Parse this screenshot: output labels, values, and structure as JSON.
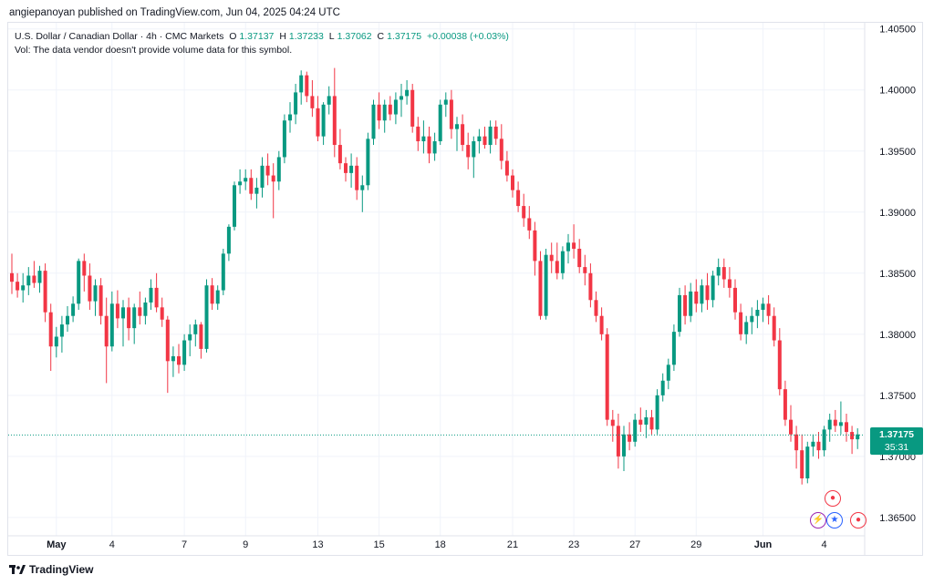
{
  "header": {
    "published_line": "angiepanoyan published on TradingView.com, Jun 04, 2025 04:24 UTC"
  },
  "legend": {
    "symbol": "U.S. Dollar / Canadian Dollar · 4h · CMC Markets",
    "o_key": "O",
    "o_val": "1.37137",
    "h_key": "H",
    "h_val": "1.37233",
    "l_key": "L",
    "l_val": "1.37062",
    "c_key": "C",
    "c_val": "1.37175",
    "change": "+0.00038 (+0.03%)",
    "vol_note": "Vol: The data vendor doesn't provide volume data for this symbol."
  },
  "price_label": {
    "price": "1.37175",
    "countdown": "35:31"
  },
  "footer": {
    "brand": "TradingView"
  },
  "colors": {
    "up": "#089981",
    "down": "#f23645",
    "grid": "#f0f3fa",
    "text": "#131722"
  },
  "chart_data": {
    "type": "candlestick",
    "symbol": "USDCAD",
    "timeframe": "4h",
    "y_range": [
      1.3635,
      1.4055
    ],
    "y_ticks": [
      "1.40500",
      "1.40000",
      "1.39500",
      "1.39000",
      "1.38500",
      "1.38000",
      "1.37500",
      "1.37000",
      "1.36500"
    ],
    "y_tick_values": [
      1.405,
      1.4,
      1.395,
      1.39,
      1.385,
      1.38,
      1.375,
      1.37,
      1.365
    ],
    "x_ticks": [
      "May",
      "4",
      "7",
      "9",
      "13",
      "15",
      "18",
      "21",
      "23",
      "27",
      "29",
      "Jun",
      "4"
    ],
    "x_tick_bar_index": [
      8,
      18,
      31,
      42,
      55,
      66,
      77,
      90,
      101,
      112,
      123,
      135,
      146
    ],
    "last_price": 1.37175,
    "candles": [
      [
        1.385,
        1.3866,
        1.3833,
        1.3843
      ],
      [
        1.3843,
        1.385,
        1.383,
        1.3836
      ],
      [
        1.3836,
        1.385,
        1.3826,
        1.384
      ],
      [
        1.384,
        1.3855,
        1.3832,
        1.3848
      ],
      [
        1.3848,
        1.386,
        1.3838,
        1.3842
      ],
      [
        1.3842,
        1.3856,
        1.3834,
        1.3852
      ],
      [
        1.3852,
        1.3858,
        1.381,
        1.3818
      ],
      [
        1.3818,
        1.3825,
        1.377,
        1.379
      ],
      [
        1.379,
        1.3806,
        1.3781,
        1.3798
      ],
      [
        1.3798,
        1.3815,
        1.3785,
        1.3808
      ],
      [
        1.3808,
        1.3823,
        1.3802,
        1.3815
      ],
      [
        1.3815,
        1.3831,
        1.381,
        1.3825
      ],
      [
        1.3825,
        1.3862,
        1.382,
        1.386
      ],
      [
        1.386,
        1.3866,
        1.3835,
        1.3848
      ],
      [
        1.3848,
        1.3858,
        1.382,
        1.3827
      ],
      [
        1.3827,
        1.3845,
        1.3815,
        1.384
      ],
      [
        1.384,
        1.3846,
        1.3808,
        1.3815
      ],
      [
        1.3815,
        1.383,
        1.376,
        1.379
      ],
      [
        1.379,
        1.3835,
        1.3786,
        1.3825
      ],
      [
        1.3825,
        1.3836,
        1.3805,
        1.3813
      ],
      [
        1.3813,
        1.3828,
        1.379,
        1.3822
      ],
      [
        1.3822,
        1.383,
        1.3795,
        1.3805
      ],
      [
        1.3805,
        1.3825,
        1.3792,
        1.3822
      ],
      [
        1.3822,
        1.3835,
        1.3808,
        1.3815
      ],
      [
        1.3815,
        1.383,
        1.3808,
        1.3826
      ],
      [
        1.3826,
        1.3845,
        1.382,
        1.3838
      ],
      [
        1.3838,
        1.385,
        1.3818,
        1.3822
      ],
      [
        1.3822,
        1.383,
        1.3806,
        1.3812
      ],
      [
        1.3812,
        1.3815,
        1.3752,
        1.3778
      ],
      [
        1.3778,
        1.379,
        1.3765,
        1.3782
      ],
      [
        1.3782,
        1.3792,
        1.3768,
        1.3775
      ],
      [
        1.3775,
        1.38,
        1.377,
        1.3795
      ],
      [
        1.3795,
        1.3808,
        1.3782,
        1.38
      ],
      [
        1.38,
        1.3812,
        1.379,
        1.3808
      ],
      [
        1.3808,
        1.381,
        1.378,
        1.3788
      ],
      [
        1.3788,
        1.3845,
        1.3785,
        1.384
      ],
      [
        1.384,
        1.3846,
        1.382,
        1.3825
      ],
      [
        1.3825,
        1.384,
        1.382,
        1.3836
      ],
      [
        1.3836,
        1.387,
        1.3832,
        1.3866
      ],
      [
        1.3866,
        1.389,
        1.386,
        1.3888
      ],
      [
        1.3888,
        1.3925,
        1.3885,
        1.3922
      ],
      [
        1.3922,
        1.3935,
        1.3915,
        1.3925
      ],
      [
        1.3925,
        1.3935,
        1.3918,
        1.3928
      ],
      [
        1.3928,
        1.3935,
        1.391,
        1.3915
      ],
      [
        1.3915,
        1.3928,
        1.3903,
        1.392
      ],
      [
        1.392,
        1.3945,
        1.3912,
        1.3938
      ],
      [
        1.3938,
        1.3948,
        1.3922,
        1.393
      ],
      [
        1.393,
        1.394,
        1.3895,
        1.3925
      ],
      [
        1.3925,
        1.395,
        1.3918,
        1.3945
      ],
      [
        1.3945,
        1.398,
        1.394,
        1.3975
      ],
      [
        1.3975,
        1.399,
        1.3965,
        1.398
      ],
      [
        1.398,
        1.4005,
        1.3972,
        1.3998
      ],
      [
        1.3998,
        1.4016,
        1.3988,
        1.4012
      ],
      [
        1.4012,
        1.4015,
        1.399,
        1.3995
      ],
      [
        1.3995,
        1.4008,
        1.3978,
        1.3985
      ],
      [
        1.3985,
        1.3995,
        1.3958,
        1.3962
      ],
      [
        1.3962,
        1.399,
        1.3955,
        1.3988
      ],
      [
        1.3988,
        1.4003,
        1.398,
        1.3995
      ],
      [
        1.3995,
        1.4018,
        1.3945,
        1.3955
      ],
      [
        1.3955,
        1.3968,
        1.3935,
        1.394
      ],
      [
        1.394,
        1.3945,
        1.3925,
        1.3932
      ],
      [
        1.3932,
        1.3948,
        1.392,
        1.3938
      ],
      [
        1.3938,
        1.3945,
        1.391,
        1.3918
      ],
      [
        1.3918,
        1.393,
        1.39,
        1.3922
      ],
      [
        1.3922,
        1.3965,
        1.3918,
        1.396
      ],
      [
        1.396,
        1.3992,
        1.3955,
        1.3988
      ],
      [
        1.3988,
        1.3998,
        1.3968,
        1.3975
      ],
      [
        1.3975,
        1.3992,
        1.3965,
        1.3988
      ],
      [
        1.3988,
        1.3995,
        1.3975,
        1.398
      ],
      [
        1.398,
        1.3998,
        1.3972,
        1.3992
      ],
      [
        1.3992,
        1.4005,
        1.3978,
        1.3995
      ],
      [
        1.3995,
        1.4008,
        1.3988,
        1.4
      ],
      [
        1.4,
        1.4005,
        1.3965,
        1.397
      ],
      [
        1.397,
        1.3978,
        1.395,
        1.3958
      ],
      [
        1.3958,
        1.3975,
        1.3948,
        1.3962
      ],
      [
        1.3962,
        1.397,
        1.394,
        1.3948
      ],
      [
        1.3948,
        1.3965,
        1.3942,
        1.3958
      ],
      [
        1.3958,
        1.3992,
        1.3955,
        1.3988
      ],
      [
        1.3988,
        1.3998,
        1.3978,
        1.3992
      ],
      [
        1.3992,
        1.4,
        1.396,
        1.3968
      ],
      [
        1.3968,
        1.3978,
        1.395,
        1.3972
      ],
      [
        1.3972,
        1.398,
        1.395,
        1.3955
      ],
      [
        1.3955,
        1.3965,
        1.3935,
        1.3945
      ],
      [
        1.3945,
        1.3962,
        1.3928,
        1.3958
      ],
      [
        1.3958,
        1.3968,
        1.3948,
        1.3962
      ],
      [
        1.3962,
        1.397,
        1.3952,
        1.3955
      ],
      [
        1.3955,
        1.3975,
        1.3948,
        1.397
      ],
      [
        1.397,
        1.3975,
        1.3955,
        1.396
      ],
      [
        1.396,
        1.3972,
        1.3935,
        1.3942
      ],
      [
        1.3942,
        1.395,
        1.3925,
        1.393
      ],
      [
        1.393,
        1.3935,
        1.3912,
        1.3918
      ],
      [
        1.3918,
        1.3925,
        1.39,
        1.3905
      ],
      [
        1.3905,
        1.3915,
        1.3888,
        1.3895
      ],
      [
        1.3895,
        1.3905,
        1.3878,
        1.3885
      ],
      [
        1.3885,
        1.3892,
        1.3848,
        1.386
      ],
      [
        1.386,
        1.3868,
        1.3812,
        1.3815
      ],
      [
        1.3815,
        1.387,
        1.3812,
        1.3865
      ],
      [
        1.3865,
        1.3875,
        1.385,
        1.386
      ],
      [
        1.386,
        1.3875,
        1.3845,
        1.385
      ],
      [
        1.385,
        1.3872,
        1.3845,
        1.3868
      ],
      [
        1.3868,
        1.3882,
        1.3858,
        1.3875
      ],
      [
        1.3875,
        1.389,
        1.3862,
        1.387
      ],
      [
        1.387,
        1.3878,
        1.385,
        1.3855
      ],
      [
        1.3855,
        1.3865,
        1.384,
        1.385
      ],
      [
        1.385,
        1.3858,
        1.3822,
        1.3828
      ],
      [
        1.3828,
        1.3835,
        1.381,
        1.3815
      ],
      [
        1.3815,
        1.3822,
        1.3795,
        1.38
      ],
      [
        1.38,
        1.3805,
        1.3725,
        1.373
      ],
      [
        1.373,
        1.3738,
        1.3712,
        1.3725
      ],
      [
        1.3725,
        1.3735,
        1.369,
        1.37
      ],
      [
        1.37,
        1.3725,
        1.3688,
        1.3718
      ],
      [
        1.3718,
        1.3728,
        1.3705,
        1.3712
      ],
      [
        1.3712,
        1.3735,
        1.3708,
        1.373
      ],
      [
        1.373,
        1.374,
        1.372,
        1.3726
      ],
      [
        1.3726,
        1.3738,
        1.3715,
        1.3732
      ],
      [
        1.3732,
        1.3738,
        1.3718,
        1.3722
      ],
      [
        1.3722,
        1.3755,
        1.3718,
        1.375
      ],
      [
        1.375,
        1.3768,
        1.3745,
        1.3762
      ],
      [
        1.3762,
        1.378,
        1.3755,
        1.3775
      ],
      [
        1.3775,
        1.3808,
        1.377,
        1.3802
      ],
      [
        1.3802,
        1.3838,
        1.3798,
        1.3832
      ],
      [
        1.3832,
        1.384,
        1.3808,
        1.3815
      ],
      [
        1.3815,
        1.3842,
        1.381,
        1.3835
      ],
      [
        1.3835,
        1.3845,
        1.3818,
        1.3825
      ],
      [
        1.3825,
        1.3845,
        1.3818,
        1.384
      ],
      [
        1.384,
        1.385,
        1.382,
        1.3828
      ],
      [
        1.3828,
        1.3852,
        1.3822,
        1.3848
      ],
      [
        1.3848,
        1.3862,
        1.384,
        1.3855
      ],
      [
        1.3855,
        1.3862,
        1.3838,
        1.3845
      ],
      [
        1.3845,
        1.3855,
        1.383,
        1.3838
      ],
      [
        1.3838,
        1.3845,
        1.3812,
        1.3818
      ],
      [
        1.3818,
        1.3825,
        1.3795,
        1.38
      ],
      [
        1.38,
        1.3815,
        1.3792,
        1.381
      ],
      [
        1.381,
        1.3822,
        1.38,
        1.3815
      ],
      [
        1.3815,
        1.3828,
        1.3805,
        1.382
      ],
      [
        1.382,
        1.383,
        1.381,
        1.3825
      ],
      [
        1.3825,
        1.3832,
        1.3808,
        1.3815
      ],
      [
        1.3815,
        1.3822,
        1.379,
        1.3795
      ],
      [
        1.3795,
        1.3805,
        1.375,
        1.3755
      ],
      [
        1.3755,
        1.3762,
        1.3725,
        1.373
      ],
      [
        1.373,
        1.3742,
        1.3712,
        1.3718
      ],
      [
        1.3718,
        1.3725,
        1.369,
        1.3705
      ],
      [
        1.3705,
        1.3718,
        1.3677,
        1.3682
      ],
      [
        1.3682,
        1.3712,
        1.3678,
        1.3708
      ],
      [
        1.3708,
        1.3718,
        1.37,
        1.3712
      ],
      [
        1.3712,
        1.372,
        1.3698,
        1.3705
      ],
      [
        1.3705,
        1.3725,
        1.37,
        1.3722
      ],
      [
        1.3722,
        1.3735,
        1.3712,
        1.373
      ],
      [
        1.373,
        1.3738,
        1.372,
        1.3725
      ],
      [
        1.3725,
        1.3745,
        1.3718,
        1.3728
      ],
      [
        1.3728,
        1.3735,
        1.3712,
        1.372
      ],
      [
        1.372,
        1.3725,
        1.3702,
        1.3714
      ],
      [
        1.3714,
        1.3723,
        1.3706,
        1.3718
      ]
    ]
  }
}
